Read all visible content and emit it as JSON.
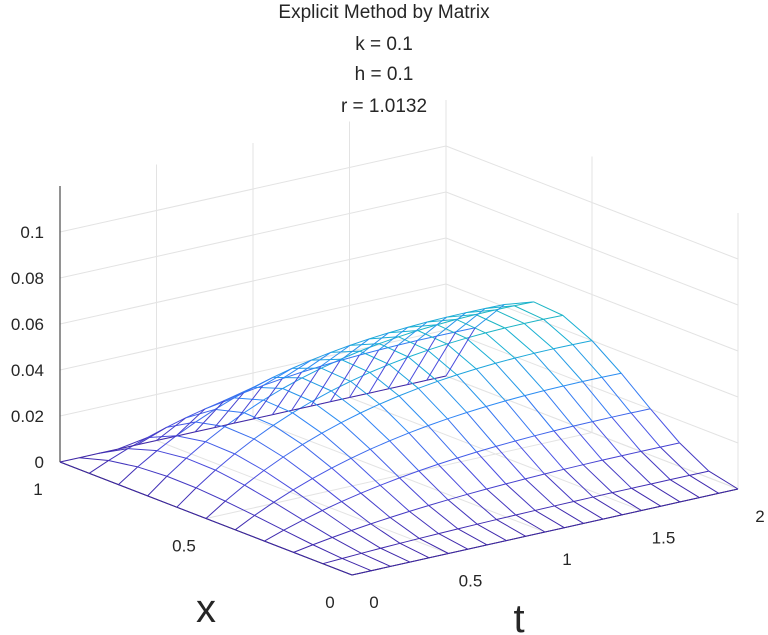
{
  "chart_data": {
    "type": "surface",
    "title": [
      "Explicit Method by Matrix",
      "k = 0.1",
      "h = 0.1",
      "r = 1.0132"
    ],
    "xlabel": "t",
    "ylabel": "x",
    "t": [
      0,
      0.1,
      0.2,
      0.3,
      0.4,
      0.5,
      0.6,
      0.7,
      0.8,
      0.9,
      1.0,
      1.1,
      1.2,
      1.3,
      1.4,
      1.5,
      1.6,
      1.7,
      1.8,
      1.9,
      2.0
    ],
    "x": [
      0,
      0.1,
      0.2,
      0.3,
      0.4,
      0.5,
      0.6,
      0.7,
      0.8,
      0.9,
      1.0
    ],
    "surface_description": "u(x,t) = 0.48 * t * x^2 * (1 - x) * exp(-0.55 * t)",
    "t_range": [
      0,
      2
    ],
    "x_range": [
      0,
      1
    ],
    "z_range": [
      0,
      0.12
    ],
    "t_ticks": [
      {
        "v": 0,
        "label": "0"
      },
      {
        "v": 0.5,
        "label": "0.5"
      },
      {
        "v": 1,
        "label": "1"
      },
      {
        "v": 1.5,
        "label": "1.5"
      },
      {
        "v": 2,
        "label": "2"
      }
    ],
    "x_ticks": [
      {
        "v": 0,
        "label": "0"
      },
      {
        "v": 0.5,
        "label": "0.5"
      },
      {
        "v": 1,
        "label": "1"
      }
    ],
    "z_ticks": [
      {
        "v": 0,
        "label": "0"
      },
      {
        "v": 0.02,
        "label": "0.02"
      },
      {
        "v": 0.04,
        "label": "0.04"
      },
      {
        "v": 0.06,
        "label": "0.06"
      },
      {
        "v": 0.08,
        "label": "0.08"
      },
      {
        "v": 0.1,
        "label": "0.1"
      }
    ],
    "grid": true,
    "colormap": [
      "#3e26a8",
      "#4a4fe3",
      "#2e87f7",
      "#18b0d3",
      "#2cc39b",
      "#8ac96a",
      "#d9ba39",
      "#f9e21b"
    ]
  }
}
